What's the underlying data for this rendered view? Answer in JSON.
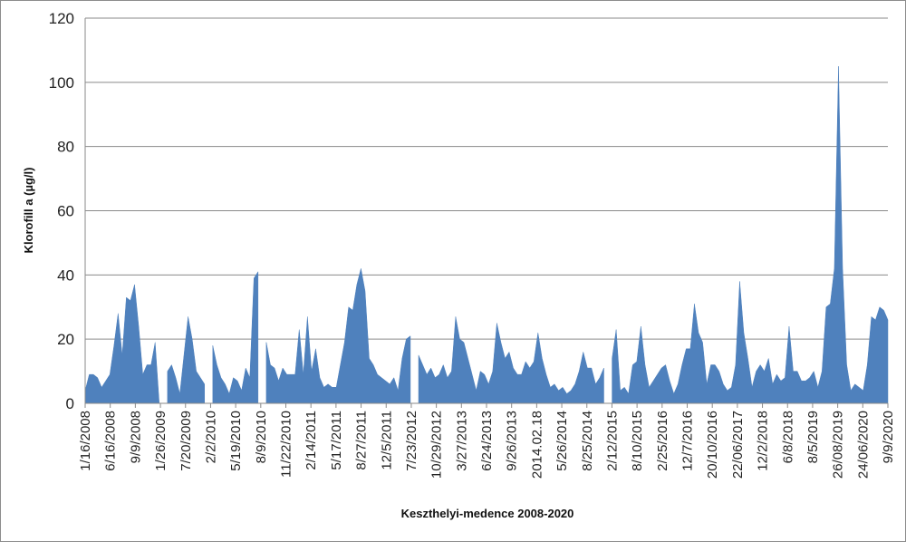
{
  "chart_data": {
    "type": "area",
    "xlabel": "Keszthelyi-medence 2008-2020",
    "ylabel": "Klorofill a (µg/l)",
    "ylim": [
      0,
      120
    ],
    "yticks": [
      0,
      20,
      40,
      60,
      80,
      100,
      120
    ],
    "grid": "horizontal",
    "legend": "none",
    "color": "#4f81bd",
    "xtick_labels": [
      "1/16/2008",
      "6/16/2008",
      "9/9/2008",
      "1/26/2009",
      "7/20/2009",
      "2/2/2010",
      "5/19/2010",
      "8/9/2010",
      "11/22/2010",
      "2/14/2011",
      "5/17/2011",
      "8/27/2011",
      "12/5/2011",
      "7/23/2012",
      "10/29/2012",
      "3/27/2013",
      "6/24/2013",
      "9/26/2013",
      "2014.02.18",
      "5/26/2014",
      "8/25/2014",
      "2/12/2015",
      "8/10/2015",
      "2/25/2016",
      "12/7/2016",
      "20/10/2016",
      "22/06/2017",
      "12/2/2018",
      "6/8/2018",
      "8/5/2019",
      "26/08/2019",
      "24/06/2020",
      "9/9/2020"
    ],
    "segments": [
      [
        4,
        9,
        9,
        8,
        5,
        7,
        9,
        18,
        28,
        15,
        33,
        32,
        37,
        24,
        9,
        12,
        12,
        19,
        0
      ],
      [
        10,
        12,
        8,
        3,
        15,
        27,
        20,
        10,
        8,
        6
      ],
      [
        18,
        12,
        8,
        6,
        3,
        8,
        7,
        4,
        11,
        8,
        39,
        41
      ],
      [
        19,
        12,
        11,
        7,
        11,
        9,
        9,
        9,
        23,
        9,
        27,
        10,
        17,
        8,
        5,
        6,
        5,
        5,
        12,
        19,
        30,
        29,
        37,
        42,
        35,
        14,
        12,
        9,
        8,
        7,
        6,
        8,
        4,
        14,
        20,
        21
      ],
      [
        15,
        12,
        9,
        11,
        8,
        9,
        12,
        8,
        10,
        27,
        20,
        19,
        14,
        9,
        4,
        10,
        9,
        6,
        10,
        25,
        19,
        14,
        16,
        11,
        9,
        9,
        13,
        11,
        13,
        22,
        14,
        9,
        5,
        6,
        4,
        5,
        3,
        4,
        6,
        10,
        16,
        11,
        11,
        6,
        8,
        11
      ],
      [
        14,
        23,
        4,
        5,
        3,
        12,
        13,
        24,
        12,
        5,
        7,
        9,
        11,
        12,
        7,
        3,
        6,
        12,
        17,
        17,
        31,
        22,
        19,
        6,
        12,
        12,
        10,
        6,
        4,
        5,
        12,
        38,
        22,
        14,
        5,
        10,
        12,
        10,
        14,
        6,
        9,
        7,
        8,
        24,
        10,
        10,
        7,
        7,
        8,
        10,
        5,
        10,
        30,
        31,
        42,
        105,
        42,
        12,
        4,
        6,
        5,
        4,
        12,
        27,
        26,
        30,
        29,
        26
      ]
    ]
  }
}
